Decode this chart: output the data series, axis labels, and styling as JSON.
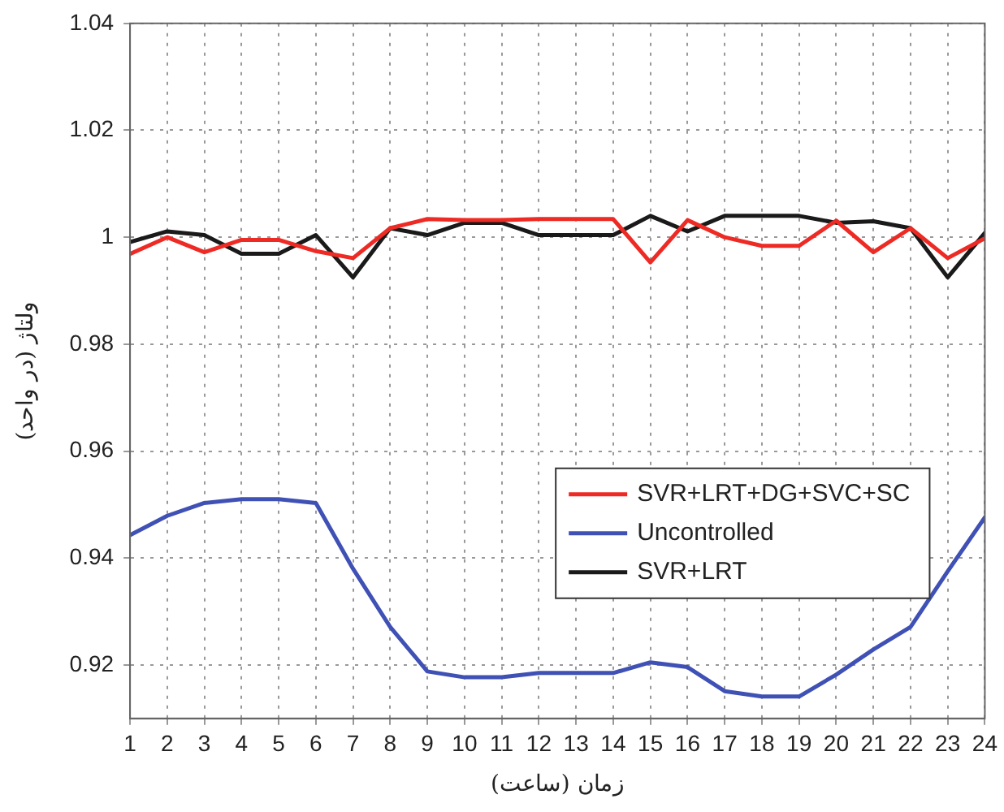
{
  "chart_data": {
    "type": "line",
    "xlabel": "زمان (ساعت)",
    "ylabel": "ولتاژ (در واحد)",
    "x": [
      1,
      2,
      3,
      4,
      5,
      6,
      7,
      8,
      9,
      10,
      11,
      12,
      13,
      14,
      15,
      16,
      17,
      18,
      19,
      20,
      21,
      22,
      23,
      24
    ],
    "xlim": [
      1,
      24
    ],
    "xticks": [
      1,
      2,
      3,
      4,
      5,
      6,
      7,
      8,
      9,
      10,
      11,
      12,
      13,
      14,
      15,
      16,
      17,
      18,
      19,
      20,
      21,
      22,
      23,
      24
    ],
    "ylim": [
      0.91,
      1.04
    ],
    "yticks": [
      0.92,
      0.94,
      0.96,
      0.98,
      1,
      1.02,
      1.04
    ],
    "grid": true,
    "legend": "right",
    "line_style": "solid",
    "marker": "none",
    "series": [
      {
        "name": "SVR+LRT+DG+SVC+SC",
        "color": "#ee2a24",
        "values": [
          0.9969,
          1.0,
          0.9972,
          0.9995,
          0.9995,
          0.9974,
          0.9961,
          1.0017,
          1.0034,
          1.0032,
          1.0032,
          1.0034,
          1.0034,
          1.0034,
          0.9953,
          1.0032,
          1.0,
          0.9984,
          0.9984,
          1.0031,
          0.9972,
          1.0017,
          0.9961,
          0.9998
        ]
      },
      {
        "name": "Uncontrolled",
        "color": "#3f51b5",
        "values": [
          0.9443,
          0.9479,
          0.9503,
          0.951,
          0.951,
          0.9503,
          0.938,
          0.9271,
          0.9188,
          0.9177,
          0.9177,
          0.9185,
          0.9185,
          0.9185,
          0.9205,
          0.9196,
          0.9151,
          0.9141,
          0.9141,
          0.9182,
          0.9229,
          0.9271,
          0.9375,
          0.9476
        ]
      },
      {
        "name": "SVR+LRT",
        "color": "#1a1a1a",
        "values": [
          0.9991,
          1.0011,
          1.0004,
          0.9969,
          0.9969,
          1.0004,
          0.9925,
          1.0017,
          1.0004,
          1.0027,
          1.0027,
          1.0004,
          1.0004,
          1.0004,
          1.004,
          1.0011,
          1.004,
          1.004,
          1.004,
          1.0027,
          1.003,
          1.0017,
          0.9925,
          1.0008
        ]
      }
    ]
  }
}
